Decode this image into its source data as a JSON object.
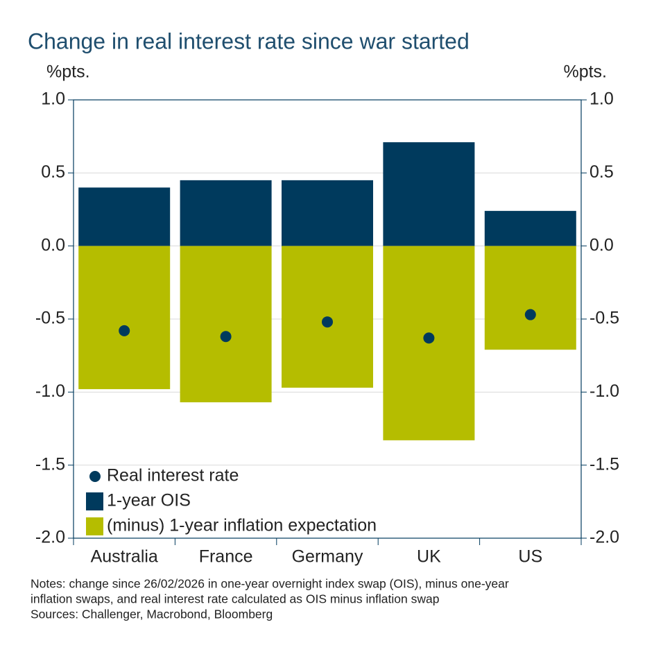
{
  "chart_data": {
    "type": "bar",
    "title": "Change in real interest rate since war started",
    "y_label": "%pts.",
    "y2_label": "%pts.",
    "categories": [
      "Australia",
      "France",
      "Germany",
      "UK",
      "US"
    ],
    "series": [
      {
        "name": "Real interest rate",
        "color": "#003a5d",
        "style": "dot",
        "values": [
          -0.58,
          -0.62,
          -0.52,
          -0.63,
          -0.47
        ]
      },
      {
        "name": "1-year OIS",
        "color": "#003a5d",
        "style": "bar",
        "values": [
          0.4,
          0.45,
          0.45,
          0.71,
          0.24
        ]
      },
      {
        "name": "(minus) 1-year inflation expectation",
        "color": "#b5bd00",
        "style": "bar",
        "values": [
          -0.98,
          -1.07,
          -0.97,
          -1.33,
          -0.71
        ]
      }
    ],
    "ylim": [
      -2.0,
      1.0
    ],
    "yticks": [
      {
        "value": 1.0,
        "label": "1.0"
      },
      0.5,
      {
        "value": 0.0,
        "label": "0.0"
      },
      -0.5,
      {
        "value": -1.0,
        "label": "-1.0"
      },
      -1.5,
      {
        "value": -2.0,
        "label": "-2.0"
      }
    ],
    "y2lim": [
      -2.0,
      1.0
    ],
    "y2ticks": [
      {
        "value": 1.0,
        "label": "1.0"
      },
      0.5,
      {
        "value": 0.0,
        "label": "0.0"
      },
      -0.5,
      {
        "value": -1.0,
        "label": "-1.0"
      },
      -1.5,
      {
        "value": -2.0,
        "label": "-2.0"
      }
    ],
    "grid": true,
    "legend": "lower-left",
    "notes": [
      "Notes: change since 26/02/2026 in one-year overnight index swap (OIS), minus one-year",
      "inflation swaps, and real interest rate calculated as OIS minus inflation swap",
      "Sources: Challenger, Macrobond, Bloomberg"
    ]
  }
}
